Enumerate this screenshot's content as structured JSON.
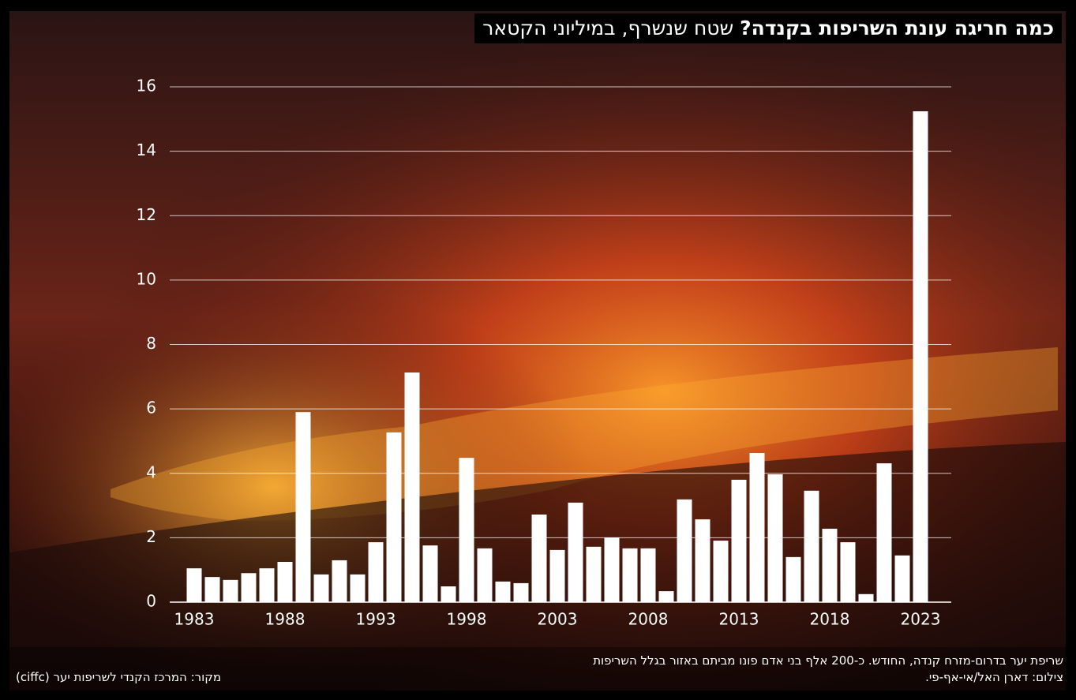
{
  "chart_data": {
    "type": "bar",
    "title": "כמה חריגה עונת השריפות בקנדה?",
    "subtitle": "שטח שנשרף, במיליוני הקטאר",
    "categories": [
      "1983",
      null,
      null,
      null,
      null,
      "1988",
      null,
      null,
      null,
      null,
      "1993",
      null,
      null,
      null,
      null,
      "1998",
      null,
      null,
      null,
      null,
      "2003",
      null,
      null,
      null,
      null,
      "2008",
      null,
      null,
      null,
      null,
      "2013",
      null,
      null,
      null,
      null,
      "2018",
      null,
      null,
      null,
      null,
      "2023"
    ],
    "values": [
      1.05,
      0.78,
      0.69,
      0.9,
      1.05,
      1.25,
      5.9,
      0.86,
      1.3,
      0.86,
      1.86,
      5.27,
      7.13,
      1.76,
      0.49,
      4.48,
      1.67,
      0.64,
      0.59,
      2.72,
      1.62,
      3.09,
      1.72,
      2.01,
      1.67,
      1.67,
      0.34,
      3.19,
      2.57,
      1.91,
      3.8,
      4.63,
      3.97,
      1.4,
      3.46,
      2.28,
      1.86,
      0.25,
      4.31,
      1.45,
      15.24
    ],
    "color": "#ffffff",
    "ylim": [
      0,
      16
    ],
    "yticks": [
      0,
      2,
      4,
      6,
      8,
      10,
      12,
      14,
      16
    ],
    "grid": true
  },
  "caption": "שריפת יער בדרום-מזרח קנדה, החודש. כ-200 אלף בני אדם פונו מביתם באזור בגלל השריפות",
  "credit": "צילום: דארן האל/אי-אף-פי.",
  "source": "מקור: המרכז הקנדי לשריפות יער (ciffc)"
}
